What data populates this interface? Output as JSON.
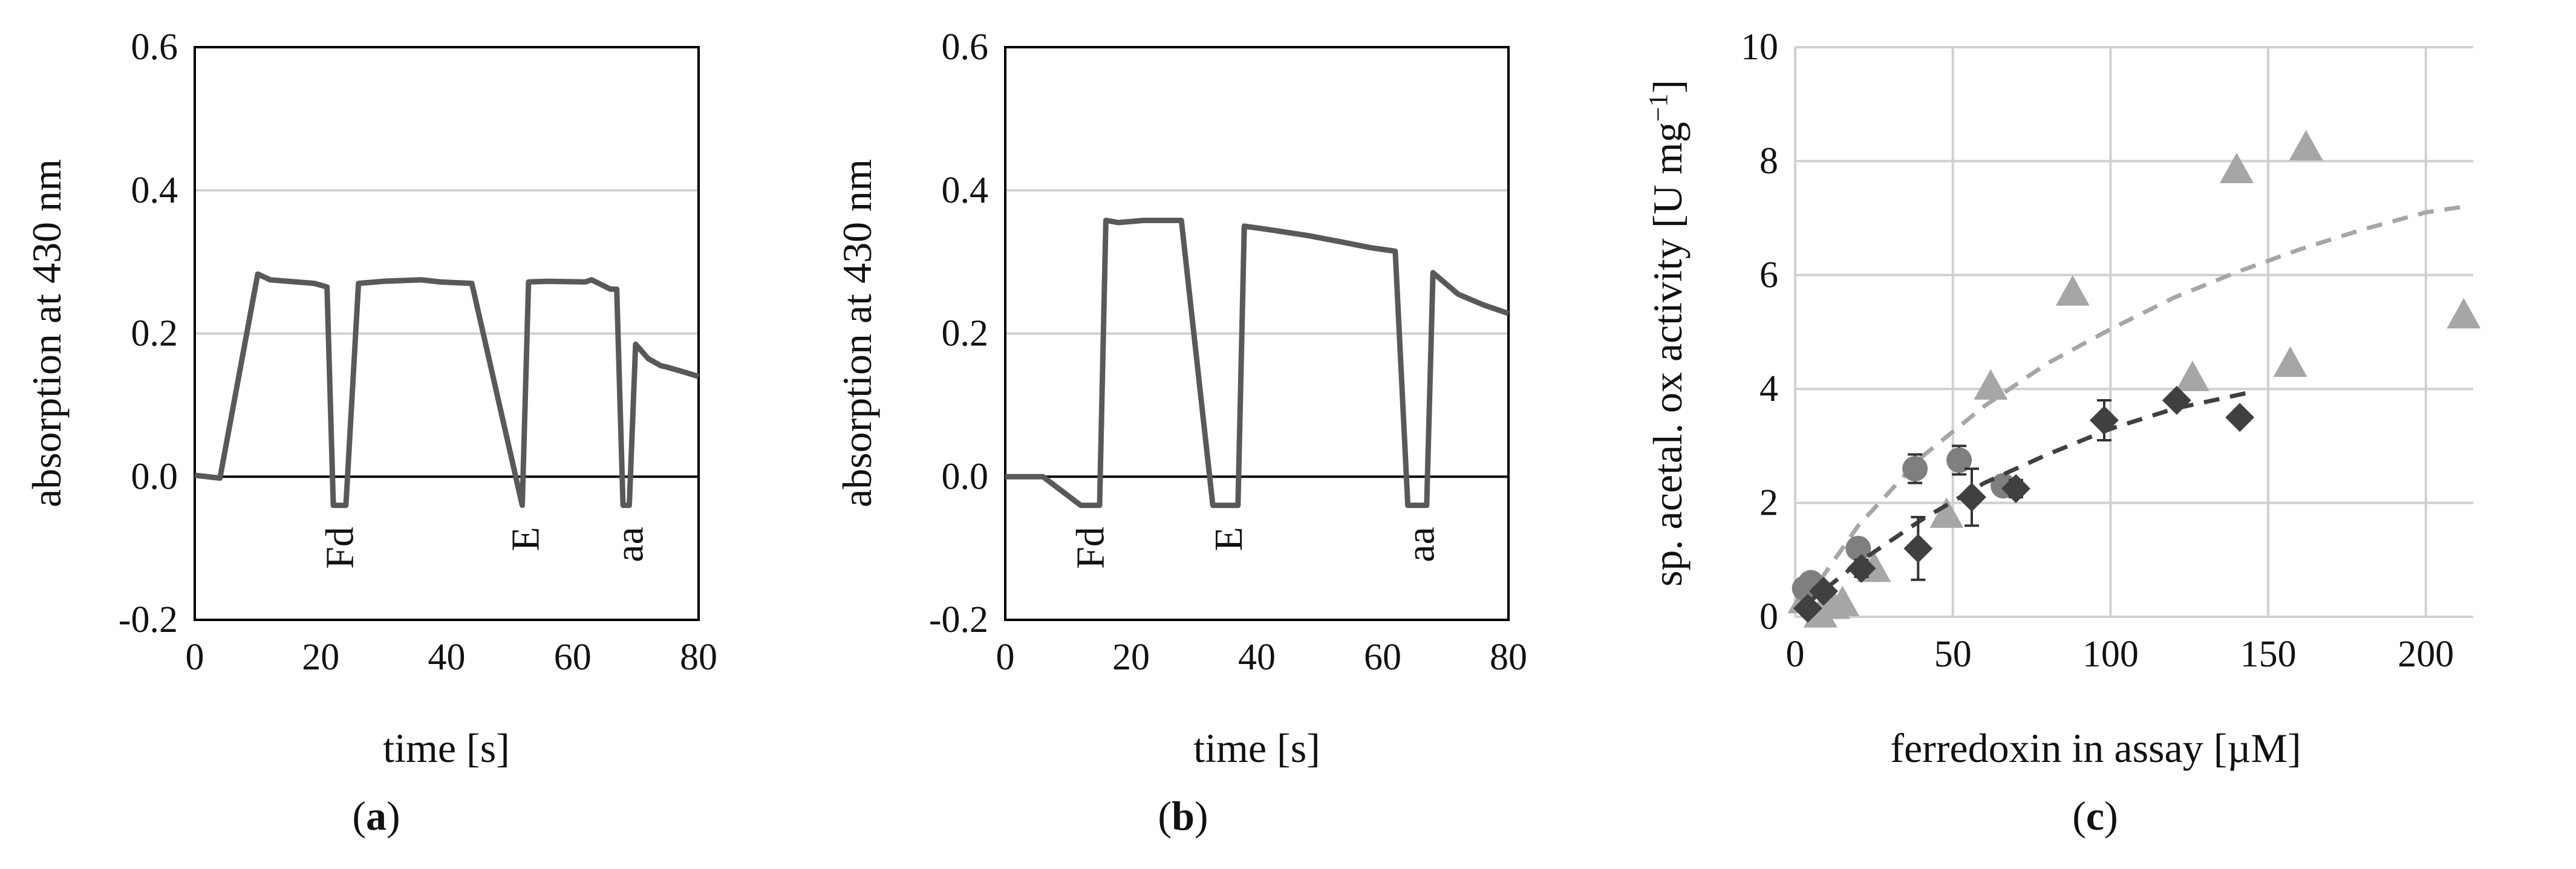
{
  "chart_data": [
    {
      "type": "line",
      "panel_label": "(a)",
      "panel_letter": "a",
      "xlabel": "time [s]",
      "ylabel": "absorption at 430 nm",
      "xlim": [
        0,
        80
      ],
      "ylim": [
        -0.2,
        0.6
      ],
      "x_ticks": [
        0,
        20,
        40,
        60,
        80
      ],
      "y_ticks": [
        -0.2,
        0.0,
        0.2,
        0.4,
        0.6
      ],
      "x_tick_labels": [
        "0",
        "20",
        "40",
        "60",
        "80"
      ],
      "y_tick_labels": [
        "-0.2",
        "0.0",
        "0.2",
        "0.4",
        "0.6"
      ],
      "grid": "horizontal",
      "series": [
        {
          "color": "#595959",
          "x": [
            0,
            4,
            10,
            12,
            19,
            21,
            22,
            24,
            26,
            30,
            36,
            39,
            44,
            52,
            53,
            56,
            62,
            63,
            66,
            67,
            68,
            69,
            70,
            72,
            74,
            75,
            77,
            80
          ],
          "y": [
            0.002,
            -0.002,
            0.283,
            0.275,
            0.27,
            0.265,
            -0.04,
            -0.04,
            0.27,
            0.273,
            0.275,
            0.272,
            0.27,
            -0.04,
            0.272,
            0.273,
            0.272,
            0.275,
            0.262,
            0.262,
            -0.04,
            -0.04,
            0.185,
            0.165,
            0.155,
            0.153,
            0.148,
            0.14
          ]
        }
      ],
      "annotations": [
        {
          "text": "Fd",
          "x": 23
        },
        {
          "text": "E",
          "x": 52.5
        },
        {
          "text": "aa",
          "x": 69
        }
      ]
    },
    {
      "type": "line",
      "panel_label": "(b)",
      "panel_letter": "b",
      "xlabel": "time [s]",
      "ylabel": "absorption at 430 nm",
      "xlim": [
        0,
        80
      ],
      "ylim": [
        -0.2,
        0.6
      ],
      "x_ticks": [
        0,
        20,
        40,
        60,
        80
      ],
      "y_ticks": [
        -0.2,
        0.0,
        0.2,
        0.4,
        0.6
      ],
      "x_tick_labels": [
        "0",
        "20",
        "40",
        "60",
        "80"
      ],
      "y_tick_labels": [
        "-0.2",
        "0.0",
        "0.2",
        "0.4",
        "0.6"
      ],
      "grid": "horizontal",
      "series": [
        {
          "color": "#595959",
          "x": [
            0,
            6,
            12,
            15,
            16,
            18,
            22,
            28,
            33,
            34,
            37,
            38,
            42,
            48,
            54,
            58,
            62,
            64,
            65,
            67,
            68,
            72,
            76,
            80
          ],
          "y": [
            0.0,
            0.0,
            -0.04,
            -0.04,
            0.358,
            0.355,
            0.358,
            0.358,
            -0.04,
            -0.04,
            -0.04,
            0.35,
            0.345,
            0.337,
            0.327,
            0.32,
            0.315,
            -0.04,
            -0.04,
            -0.04,
            0.285,
            0.255,
            0.24,
            0.228
          ]
        }
      ],
      "annotations": [
        {
          "text": "Fd",
          "x": 13.5
        },
        {
          "text": "E",
          "x": 35.5
        },
        {
          "text": "aa",
          "x": 66
        }
      ]
    },
    {
      "type": "scatter",
      "panel_label": "(c)",
      "panel_letter": "c",
      "xlabel": "ferredoxin in assay [µM]",
      "ylabel": "sp. acetal. ox activity [U mg",
      "ylabel_sup": "−1",
      "ylabel_end": "]",
      "xlim": [
        0,
        215
      ],
      "ylim": [
        0,
        10
      ],
      "x_ticks": [
        0,
        50,
        100,
        150,
        200
      ],
      "y_ticks": [
        0,
        2,
        4,
        6,
        8,
        10
      ],
      "x_tick_labels": [
        "0",
        "50",
        "100",
        "150",
        "200"
      ],
      "y_tick_labels": [
        "0",
        "2",
        "4",
        "6",
        "8",
        "10"
      ],
      "grid": "both",
      "series": [
        {
          "marker": "triangle",
          "color": "#a6a6a6",
          "x": [
            3,
            8,
            12,
            15,
            25,
            48,
            62,
            88,
            126,
            140,
            157,
            162,
            212
          ],
          "y": [
            0.3,
            0.05,
            0.2,
            0.25,
            0.85,
            1.8,
            4.05,
            5.7,
            4.2,
            7.85,
            4.45,
            8.25,
            5.3
          ],
          "fit": {
            "x": [
              3,
              20,
              40,
              60,
              80,
              100,
              120,
              140,
              160,
              180,
              200,
              212
            ],
            "y": [
              0.25,
              1.6,
              2.8,
              3.7,
              4.45,
              5.05,
              5.6,
              6.05,
              6.45,
              6.8,
              7.1,
              7.2
            ]
          }
        },
        {
          "marker": "circle",
          "color": "#7f7f7f",
          "x": [
            3,
            5,
            20,
            38,
            52,
            66
          ],
          "y": [
            0.5,
            0.6,
            1.2,
            2.6,
            2.75,
            2.3
          ],
          "error": [
            0.1,
            0.1,
            0.15,
            0.25,
            0.25,
            0.15
          ]
        },
        {
          "marker": "diamond",
          "color": "#404040",
          "x": [
            4,
            9,
            21,
            39,
            56,
            70,
            98,
            121,
            141
          ],
          "y": [
            0.15,
            0.45,
            0.85,
            1.2,
            2.1,
            2.25,
            3.45,
            3.8,
            3.5
          ],
          "error": [
            0.05,
            0.1,
            0.15,
            0.55,
            0.5,
            0.15,
            0.35,
            0.1,
            0.1
          ],
          "fit": {
            "x": [
              3,
              20,
              40,
              60,
              80,
              100,
              120,
              145
            ],
            "y": [
              0.2,
              0.95,
              1.7,
              2.35,
              2.85,
              3.3,
              3.65,
              3.95
            ]
          }
        }
      ]
    }
  ]
}
